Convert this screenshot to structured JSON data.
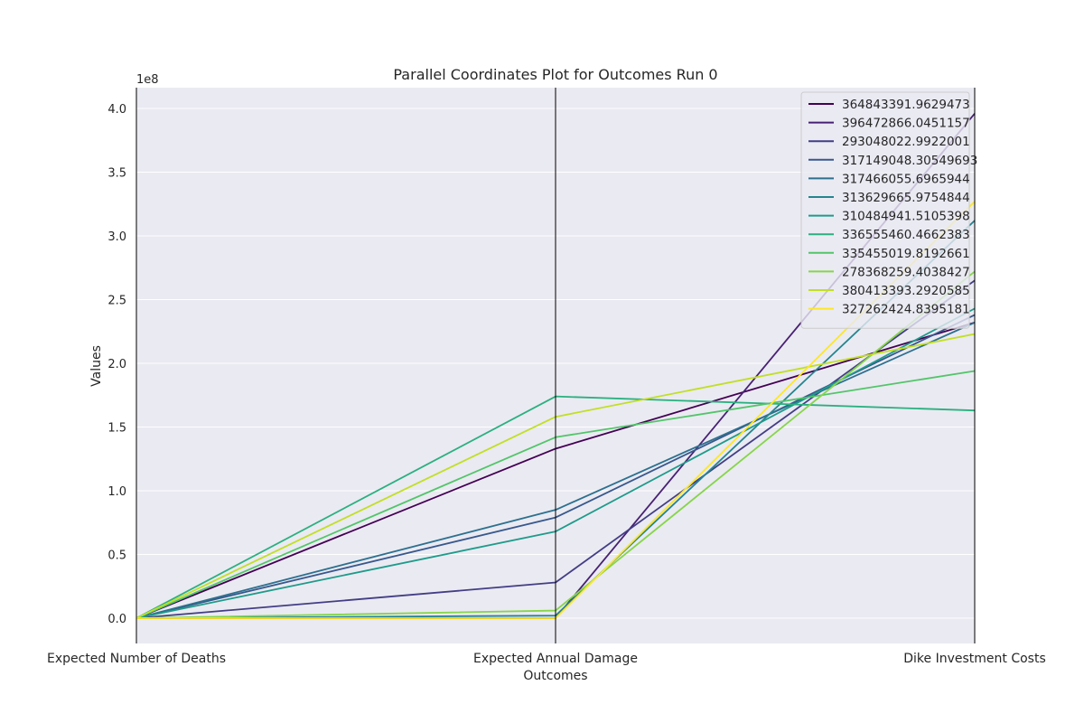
{
  "chart_data": {
    "type": "parallel_coordinates",
    "title": "Parallel Coordinates Plot for Outcomes Run 0",
    "xlabel": "Outcomes",
    "ylabel": "Values",
    "y_scale_label": "1e8",
    "axes": [
      "Expected Number of Deaths",
      "Expected Annual Damage",
      "Dike Investment Costs"
    ],
    "yticks": [
      0.0,
      0.5,
      1.0,
      1.5,
      2.0,
      2.5,
      3.0,
      3.5,
      4.0
    ],
    "ytick_labels": [
      "0.0",
      "0.5",
      "1.0",
      "1.5",
      "2.0",
      "2.5",
      "3.0",
      "3.5",
      "4.0"
    ],
    "ylim": [
      -0.2,
      4.16
    ],
    "grid": true,
    "legend_position": "top-right",
    "series": [
      {
        "name": "364843391.9629473",
        "color": "#440154",
        "values": [
          0.0,
          1.33,
          2.32
        ]
      },
      {
        "name": "396472866.0451157",
        "color": "#482173",
        "values": [
          0.0,
          0.0,
          3.96
        ]
      },
      {
        "name": "293048022.9922001",
        "color": "#433e85",
        "values": [
          0.0,
          0.28,
          2.65
        ]
      },
      {
        "name": "317149048.30549693",
        "color": "#38588c",
        "values": [
          0.0,
          0.79,
          2.38
        ]
      },
      {
        "name": "317466055.6965944",
        "color": "#2d708e",
        "values": [
          0.0,
          0.85,
          2.32
        ]
      },
      {
        "name": "313629665.9754844",
        "color": "#25858e",
        "values": [
          0.0,
          0.02,
          3.12
        ]
      },
      {
        "name": "310484941.5105398",
        "color": "#1e9b8a",
        "values": [
          0.0,
          0.68,
          2.43
        ]
      },
      {
        "name": "336555460.4662383",
        "color": "#2ab07f",
        "values": [
          0.0,
          1.74,
          1.63
        ]
      },
      {
        "name": "335455019.8192661",
        "color": "#52c569",
        "values": [
          0.0,
          1.42,
          1.94
        ]
      },
      {
        "name": "278368259.4038427",
        "color": "#86d549",
        "values": [
          0.0,
          0.06,
          2.72
        ]
      },
      {
        "name": "380413393.2920585",
        "color": "#c2df23",
        "values": [
          0.0,
          1.58,
          2.23
        ]
      },
      {
        "name": "327262424.8395181",
        "color": "#fde725",
        "values": [
          0.0,
          0.0,
          3.27
        ]
      }
    ]
  }
}
